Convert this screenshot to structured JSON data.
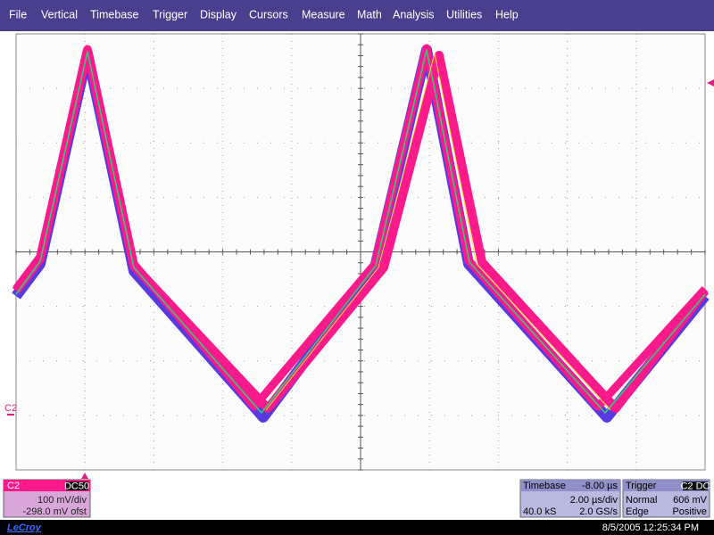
{
  "menu": [
    "File",
    "Vertical",
    "Timebase",
    "Trigger",
    "Display",
    "Cursors",
    "Measure",
    "Math",
    "Analysis",
    "Utilities",
    "Help"
  ],
  "ground_marker": "C2",
  "channel": {
    "label": "C2",
    "coupling": "DC50",
    "scale": "100 mV/div",
    "offset": "-298.0 mV ofst"
  },
  "timebase": {
    "title": "Timebase",
    "delay": "-8.00 µs",
    "scale": "2.00 µs/div",
    "samples": "40.0 kS",
    "rate": "2.0 GS/s"
  },
  "trigger": {
    "title": "Trigger",
    "source": "C2 DC",
    "mode": "Normal",
    "level": "606 mV",
    "type": "Edge",
    "slope": "Positive"
  },
  "brand": "LeCroy",
  "timestamp": "8/5/2005 12:25:34 PM"
}
